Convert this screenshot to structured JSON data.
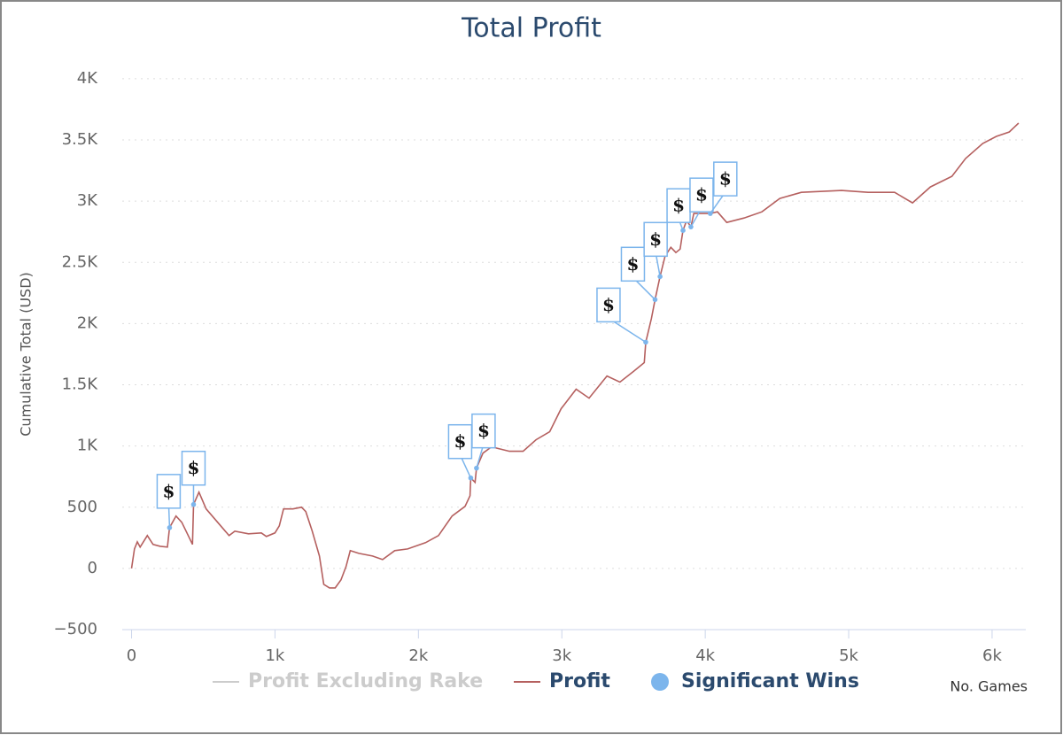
{
  "chart_data": {
    "type": "line",
    "title": "Total Profit",
    "x_label": "No. Games",
    "y_label": "Cumulative Total (USD)",
    "xlim": [
      -65,
      6235
    ],
    "ylim": [
      -500,
      4050
    ],
    "xticks": [
      0,
      {
        "value": 1000,
        "label": "1k"
      },
      {
        "value": 2000,
        "label": "2k"
      },
      {
        "value": 3000,
        "label": "3k"
      },
      {
        "value": 4000,
        "label": "4k"
      },
      {
        "value": 5000,
        "label": "5k"
      },
      {
        "value": 6000,
        "label": "6k"
      }
    ],
    "yticks": [
      {
        "value": -500,
        "label": "−500"
      },
      0,
      500,
      {
        "value": 1000,
        "label": "1K"
      },
      {
        "value": 1500,
        "label": "1.5K"
      },
      {
        "value": 2000,
        "label": "2K"
      },
      {
        "value": 2500,
        "label": "2.5K"
      },
      {
        "value": 3000,
        "label": "3K"
      },
      {
        "value": 3500,
        "label": "3.5K"
      },
      {
        "value": 4000,
        "label": "4K"
      }
    ],
    "grid": true,
    "legend": "bottom",
    "series": [
      {
        "name": "Profit Excluding Rake",
        "color": "#cccccc",
        "visible": false
      },
      {
        "name": "Profit",
        "color": "#b5605f",
        "visible": true,
        "x": [
          0,
          20,
          40,
          60,
          110,
          150,
          200,
          250,
          265,
          310,
          350,
          395,
          425,
          432,
          470,
          520,
          600,
          680,
          720,
          815,
          905,
          940,
          1000,
          1030,
          1060,
          1125,
          1185,
          1215,
          1260,
          1310,
          1340,
          1380,
          1420,
          1460,
          1495,
          1525,
          1585,
          1680,
          1750,
          1835,
          1925,
          2050,
          2140,
          2235,
          2325,
          2360,
          2365,
          2395,
          2405,
          2450,
          2510,
          2635,
          2730,
          2820,
          2915,
          2995,
          3100,
          3190,
          3315,
          3405,
          3500,
          3575,
          3585,
          3625,
          3650,
          3685,
          3720,
          3760,
          3795,
          3825,
          3845,
          3870,
          3900,
          3920,
          4035,
          4085,
          4150,
          4270,
          4395,
          4520,
          4670,
          4950,
          5135,
          5320,
          5445,
          5570,
          5720,
          5815,
          5935,
          6030,
          6120,
          6185
        ],
        "values": [
          0,
          160,
          217,
          174,
          268,
          196,
          181,
          174,
          333,
          428,
          377,
          268,
          196,
          522,
          623,
          486,
          377,
          268,
          304,
          283,
          290,
          261,
          290,
          348,
          486,
          486,
          500,
          464,
          304,
          101,
          -130,
          -159,
          -159,
          -94,
          14,
          145,
          123,
          101,
          72,
          145,
          159,
          210,
          268,
          428,
          507,
          594,
          739,
          703,
          819,
          942,
          993,
          957,
          957,
          1051,
          1116,
          1304,
          1464,
          1391,
          1572,
          1522,
          1609,
          1681,
          1848,
          2043,
          2196,
          2384,
          2551,
          2623,
          2580,
          2609,
          2761,
          2841,
          2790,
          2899,
          2899,
          2913,
          2826,
          2862,
          2913,
          3022,
          3072,
          3087,
          3072,
          3072,
          2986,
          3116,
          3203,
          3348,
          3471,
          3529,
          3565,
          3638
        ]
      },
      {
        "name": "Significant Wins",
        "color": "#7cb5ec",
        "visible": true,
        "marker": "circle",
        "x": [
          265,
          432,
          2365,
          2405,
          3585,
          3650,
          3685,
          3845,
          3900,
          4035
        ],
        "values": [
          333,
          522,
          739,
          819,
          1848,
          2196,
          2384,
          2761,
          2790,
          2899
        ],
        "labels": [
          "$",
          "$",
          "$",
          "$",
          "$",
          "$",
          "$",
          "$",
          "$",
          "$"
        ]
      }
    ]
  }
}
